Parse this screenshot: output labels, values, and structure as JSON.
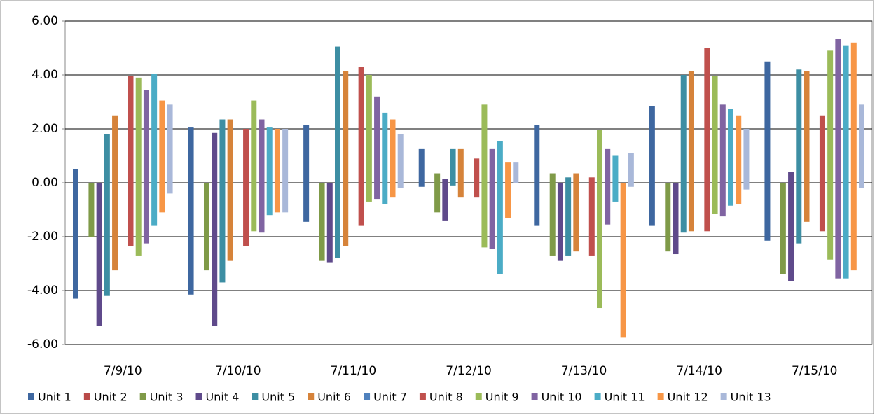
{
  "chart_data": {
    "type": "bar",
    "categories": [
      "7/9/10",
      "7/10/10",
      "7/11/10",
      "7/12/10",
      "7/13/10",
      "7/14/10",
      "7/15/10"
    ],
    "ylim": [
      -6,
      6
    ],
    "yticks": [
      {
        "value": -6,
        "label": "-6.00"
      },
      {
        "value": -4,
        "label": "-4.00"
      },
      {
        "value": -2,
        "label": "-2.00"
      },
      {
        "value": 0,
        "label": "0.00"
      },
      {
        "value": 2,
        "label": "2.00"
      },
      {
        "value": 4,
        "label": "4.00"
      },
      {
        "value": 6,
        "label": "6.00"
      }
    ],
    "grid": true,
    "legend": "bottom",
    "series": [
      {
        "name": "Unit 1",
        "color": "#3e67a0",
        "low": [
          -4.3,
          -4.15,
          -1.45,
          -0.15,
          -1.6,
          -1.6,
          -2.15
        ],
        "high": [
          0.5,
          2.05,
          2.15,
          1.25,
          2.15,
          2.85,
          4.5
        ]
      },
      {
        "name": "Unit 2",
        "color": "#b94a48",
        "low": [
          null,
          null,
          null,
          null,
          null,
          null,
          null
        ],
        "high": [
          null,
          null,
          null,
          null,
          null,
          null,
          null
        ]
      },
      {
        "name": "Unit 3",
        "color": "#7f9a48",
        "low": [
          -2.0,
          -3.25,
          -2.9,
          -1.1,
          -2.7,
          -2.55,
          -3.4
        ],
        "high": [
          0,
          0,
          0,
          0.35,
          0.35,
          0,
          0
        ]
      },
      {
        "name": "Unit 4",
        "color": "#5f4a8b",
        "low": [
          -5.3,
          -5.3,
          -2.95,
          -1.4,
          -2.9,
          -2.65,
          -3.65
        ],
        "high": [
          0,
          1.85,
          0,
          0.15,
          0,
          0,
          0.4
        ]
      },
      {
        "name": "Unit 5",
        "color": "#3d8ea3",
        "low": [
          -4.2,
          -3.7,
          -2.8,
          -0.1,
          -2.7,
          -1.85,
          -2.25
        ],
        "high": [
          1.8,
          2.35,
          5.05,
          1.25,
          0.2,
          4.0,
          4.2
        ]
      },
      {
        "name": "Unit 6",
        "color": "#d6833a",
        "low": [
          -3.25,
          -2.9,
          -2.35,
          -0.55,
          -2.55,
          -1.8,
          -1.45
        ],
        "high": [
          2.5,
          2.35,
          4.15,
          1.25,
          0.35,
          4.15,
          4.15
        ]
      },
      {
        "name": "Unit 7",
        "color": "#4f81bd",
        "low": [
          null,
          null,
          null,
          null,
          null,
          null,
          null
        ],
        "high": [
          null,
          null,
          null,
          null,
          null,
          null,
          null
        ]
      },
      {
        "name": "Unit 8",
        "color": "#c0504d",
        "low": [
          -2.35,
          -2.35,
          -1.6,
          -0.55,
          -2.7,
          -1.8,
          -1.8
        ],
        "high": [
          3.95,
          2.0,
          4.3,
          0.9,
          0.2,
          5.0,
          2.5
        ]
      },
      {
        "name": "Unit 9",
        "color": "#9bbb59",
        "low": [
          -2.7,
          -1.8,
          -0.7,
          -2.4,
          -4.65,
          -1.15,
          -2.85
        ],
        "high": [
          3.9,
          3.05,
          4.0,
          2.9,
          1.95,
          3.95,
          4.9
        ]
      },
      {
        "name": "Unit 10",
        "color": "#8064a2",
        "low": [
          -2.25,
          -1.85,
          -0.6,
          -2.45,
          -1.55,
          -1.25,
          -3.55
        ],
        "high": [
          3.45,
          2.35,
          3.2,
          1.25,
          1.25,
          2.9,
          5.35
        ]
      },
      {
        "name": "Unit 11",
        "color": "#4bacc6",
        "low": [
          -1.6,
          -1.2,
          -0.8,
          -3.4,
          -0.7,
          -0.85,
          -3.55
        ],
        "high": [
          4.05,
          2.05,
          2.6,
          1.55,
          1.0,
          2.75,
          5.1
        ]
      },
      {
        "name": "Unit 12",
        "color": "#f79646",
        "low": [
          -1.1,
          -1.1,
          -0.55,
          -1.3,
          -5.75,
          -0.8,
          -3.25
        ],
        "high": [
          3.05,
          2.0,
          2.35,
          0.75,
          0,
          2.5,
          5.2
        ]
      },
      {
        "name": "Unit 13",
        "color": "#a9b8d9",
        "low": [
          -0.4,
          -1.1,
          -0.2,
          0,
          -0.15,
          -0.25,
          -0.2
        ],
        "high": [
          2.9,
          2.0,
          1.8,
          0.75,
          1.1,
          2.0,
          2.9
        ]
      }
    ]
  }
}
